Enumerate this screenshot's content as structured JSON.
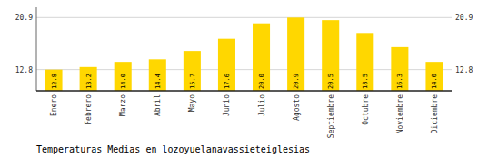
{
  "chart_data": {
    "type": "bar",
    "title": "Temperaturas Medias en lozoyuelanavassieteiglesias",
    "categories": [
      "Enero",
      "Febrero",
      "Marzo",
      "Abril",
      "Mayo",
      "Junio",
      "Julio",
      "Agosto",
      "Septiembre",
      "Octubre",
      "Noviembre",
      "Diciembre"
    ],
    "values": [
      12.8,
      13.2,
      14.0,
      14.4,
      15.7,
      17.6,
      20.0,
      20.9,
      20.5,
      18.5,
      16.3,
      14.0
    ],
    "value_labels": [
      "12.8",
      "13.2",
      "14.0",
      "14.4",
      "15.7",
      "17.6",
      "20.0",
      "20.9",
      "20.5",
      "18.5",
      "16.3",
      "14.0"
    ],
    "color": "#FFD700",
    "ylim": [
      9.5,
      22.5
    ],
    "yticks": [
      12.8,
      20.9
    ],
    "grid": true,
    "data_labels": true
  }
}
